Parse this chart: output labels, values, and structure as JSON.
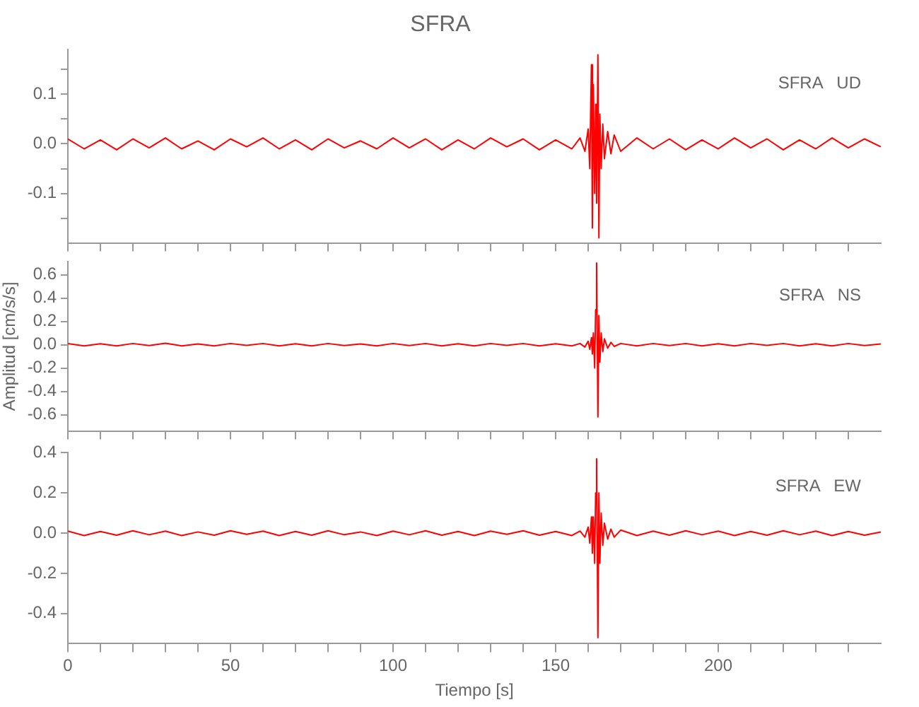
{
  "chart_data": [
    {
      "type": "line",
      "title": "SFRA",
      "annotations": [
        "SFRA   UD"
      ],
      "tick_labels": "y",
      "marker": "none",
      "x": [
        0,
        5,
        10,
        15,
        20,
        25,
        30,
        35,
        40,
        45,
        50,
        55,
        60,
        65,
        70,
        75,
        80,
        85,
        90,
        95,
        100,
        105,
        110,
        115,
        120,
        125,
        130,
        135,
        140,
        145,
        150,
        155,
        157.5,
        159,
        160,
        160.5,
        161,
        161.3,
        161.6,
        162,
        162.3,
        162.6,
        163,
        163.3,
        163.6,
        164,
        164.5,
        165,
        166,
        167,
        168,
        170,
        175,
        180,
        185,
        190,
        195,
        200,
        205,
        210,
        215,
        220,
        225,
        230,
        235,
        240,
        245,
        250
      ],
      "series": [
        {
          "color": "#ff0000",
          "values": [
            0.01,
            -0.01,
            0.008,
            -0.012,
            0.01,
            -0.008,
            0.012,
            -0.01,
            0.006,
            -0.012,
            0.01,
            -0.006,
            0.012,
            -0.01,
            0.008,
            -0.012,
            0.01,
            -0.008,
            0.006,
            -0.01,
            0.012,
            -0.008,
            0.01,
            -0.012,
            0.008,
            -0.01,
            0.012,
            -0.006,
            0.01,
            -0.012,
            0.008,
            -0.01,
            0.012,
            -0.015,
            0.03,
            -0.05,
            0.16,
            -0.17,
            0.12,
            -0.1,
            0.08,
            -0.12,
            0.18,
            -0.19,
            0.06,
            -0.05,
            0.04,
            -0.03,
            0.025,
            -0.02,
            0.018,
            -0.015,
            0.012,
            -0.01,
            0.01,
            -0.012,
            0.008,
            -0.01,
            0.012,
            -0.008,
            0.01,
            -0.012,
            0.008,
            -0.01,
            0.012,
            -0.008,
            0.01,
            -0.006
          ]
        }
      ],
      "xlim": [
        0,
        250
      ],
      "xticks": [
        0,
        {
          "value": 10,
          "label": null
        },
        {
          "value": 20,
          "label": null
        },
        {
          "value": 30,
          "label": null
        },
        {
          "value": 40,
          "label": null
        },
        50,
        {
          "value": 60,
          "label": null
        },
        {
          "value": 70,
          "label": null
        },
        {
          "value": 80,
          "label": null
        },
        {
          "value": 90,
          "label": null
        },
        100,
        {
          "value": 110,
          "label": null
        },
        {
          "value": 120,
          "label": null
        },
        {
          "value": 130,
          "label": null
        },
        {
          "value": 140,
          "label": null
        },
        150,
        {
          "value": 160,
          "label": null
        },
        {
          "value": 170,
          "label": null
        },
        {
          "value": 180,
          "label": null
        },
        {
          "value": 190,
          "label": null
        },
        200,
        {
          "value": 210,
          "label": null
        },
        {
          "value": 220,
          "label": null
        },
        {
          "value": 230,
          "label": null
        },
        {
          "value": 240,
          "label": null
        }
      ],
      "ylim": [
        -0.2,
        0.19
      ],
      "yticks": [
        {
          "value": -0.15,
          "label": null
        },
        {
          "value": -0.1,
          "label": "-0.1"
        },
        {
          "value": -0.05,
          "label": null
        },
        {
          "value": 0,
          "label": "0.0"
        },
        {
          "value": 0.05,
          "label": null
        },
        {
          "value": 0.1,
          "label": "0.1"
        },
        {
          "value": 0.15,
          "label": null
        }
      ]
    },
    {
      "type": "line",
      "ylabel": "Amplitud [cm/s/s]",
      "annotations": [
        "SFRA   NS"
      ],
      "tick_labels": "y",
      "marker": "none",
      "x": [
        0,
        5,
        10,
        15,
        20,
        25,
        30,
        35,
        40,
        45,
        50,
        55,
        60,
        65,
        70,
        75,
        80,
        85,
        90,
        95,
        100,
        105,
        110,
        115,
        120,
        125,
        130,
        135,
        140,
        145,
        150,
        155,
        157.5,
        159,
        160,
        160.5,
        161,
        161.3,
        161.6,
        162,
        162.3,
        162.6,
        163,
        163.3,
        163.6,
        164,
        164.5,
        165,
        166,
        167,
        168,
        170,
        175,
        180,
        185,
        190,
        195,
        200,
        205,
        210,
        215,
        220,
        225,
        230,
        235,
        240,
        245,
        250
      ],
      "series": [
        {
          "color": "#ff0000",
          "values": [
            0.01,
            -0.01,
            0.008,
            -0.01,
            0.01,
            -0.008,
            0.012,
            -0.01,
            0.006,
            -0.01,
            0.01,
            -0.006,
            0.01,
            -0.01,
            0.008,
            -0.01,
            0.01,
            -0.008,
            0.006,
            -0.01,
            0.01,
            -0.008,
            0.01,
            -0.01,
            0.008,
            -0.01,
            0.01,
            -0.006,
            0.01,
            -0.01,
            0.008,
            -0.01,
            0.01,
            -0.02,
            0.03,
            -0.04,
            0.06,
            -0.08,
            0.1,
            -0.2,
            0.3,
            0.7,
            -0.62,
            0.25,
            -0.15,
            0.1,
            -0.06,
            0.05,
            -0.03,
            0.02,
            -0.015,
            0.01,
            -0.01,
            0.01,
            -0.008,
            0.01,
            -0.01,
            0.008,
            -0.01,
            0.01,
            -0.006,
            0.01,
            -0.01,
            0.008,
            -0.01,
            0.01,
            -0.008,
            0.006
          ]
        }
      ],
      "xlim": [
        0,
        250
      ],
      "xticks": [
        0,
        {
          "value": 10,
          "label": null
        },
        {
          "value": 20,
          "label": null
        },
        {
          "value": 30,
          "label": null
        },
        {
          "value": 40,
          "label": null
        },
        50,
        {
          "value": 60,
          "label": null
        },
        {
          "value": 70,
          "label": null
        },
        {
          "value": 80,
          "label": null
        },
        {
          "value": 90,
          "label": null
        },
        100,
        {
          "value": 110,
          "label": null
        },
        {
          "value": 120,
          "label": null
        },
        {
          "value": 130,
          "label": null
        },
        {
          "value": 140,
          "label": null
        },
        150,
        {
          "value": 160,
          "label": null
        },
        {
          "value": 170,
          "label": null
        },
        {
          "value": 180,
          "label": null
        },
        {
          "value": 190,
          "label": null
        },
        200,
        {
          "value": 210,
          "label": null
        },
        {
          "value": 220,
          "label": null
        },
        {
          "value": 230,
          "label": null
        },
        {
          "value": 240,
          "label": null
        }
      ],
      "ylim": [
        -0.74,
        0.71
      ],
      "yticks": [
        {
          "value": -0.6,
          "label": "-0.6"
        },
        {
          "value": -0.4,
          "label": "-0.4"
        },
        {
          "value": -0.2,
          "label": "-0.2"
        },
        {
          "value": 0,
          "label": "0.0"
        },
        {
          "value": 0.2,
          "label": "0.2"
        },
        {
          "value": 0.4,
          "label": "0.4"
        },
        {
          "value": 0.6,
          "label": "0.6"
        }
      ]
    },
    {
      "type": "line",
      "xlabel": "Tiempo [s]",
      "annotations": [
        "SFRA   EW"
      ],
      "marker": "none",
      "x": [
        0,
        5,
        10,
        15,
        20,
        25,
        30,
        35,
        40,
        45,
        50,
        55,
        60,
        65,
        70,
        75,
        80,
        85,
        90,
        95,
        100,
        105,
        110,
        115,
        120,
        125,
        130,
        135,
        140,
        145,
        150,
        155,
        157.5,
        159,
        160,
        160.5,
        161,
        161.3,
        161.6,
        162,
        162.3,
        162.6,
        163,
        163.3,
        163.6,
        164,
        164.5,
        165,
        166,
        167,
        168,
        170,
        175,
        180,
        185,
        190,
        195,
        200,
        205,
        210,
        215,
        220,
        225,
        230,
        235,
        240,
        245,
        250
      ],
      "series": [
        {
          "color": "#ff0000",
          "values": [
            0.01,
            -0.012,
            0.008,
            -0.01,
            0.012,
            -0.008,
            0.01,
            -0.012,
            0.006,
            -0.01,
            0.012,
            -0.006,
            0.01,
            -0.012,
            0.008,
            -0.01,
            0.012,
            -0.008,
            0.006,
            -0.012,
            0.01,
            -0.008,
            0.012,
            -0.01,
            0.008,
            -0.012,
            0.01,
            -0.006,
            0.012,
            -0.01,
            0.008,
            -0.012,
            0.01,
            -0.02,
            0.03,
            -0.05,
            0.08,
            -0.1,
            0.08,
            -0.15,
            0.2,
            0.37,
            -0.52,
            0.2,
            -0.15,
            0.1,
            -0.06,
            0.05,
            -0.03,
            0.02,
            -0.02,
            0.015,
            -0.012,
            0.01,
            -0.01,
            0.012,
            -0.008,
            0.01,
            -0.012,
            0.008,
            -0.01,
            0.012,
            -0.008,
            0.01,
            -0.012,
            0.008,
            -0.01,
            0.006
          ]
        }
      ],
      "xlim": [
        0,
        250
      ],
      "xticks": [
        0,
        {
          "value": 10,
          "label": null
        },
        {
          "value": 20,
          "label": null
        },
        {
          "value": 30,
          "label": null
        },
        {
          "value": 40,
          "label": null
        },
        50,
        {
          "value": 60,
          "label": null
        },
        {
          "value": 70,
          "label": null
        },
        {
          "value": 80,
          "label": null
        },
        {
          "value": 90,
          "label": null
        },
        100,
        {
          "value": 110,
          "label": null
        },
        {
          "value": 120,
          "label": null
        },
        {
          "value": 130,
          "label": null
        },
        {
          "value": 140,
          "label": null
        },
        150,
        {
          "value": 160,
          "label": null
        },
        {
          "value": 170,
          "label": null
        },
        {
          "value": 180,
          "label": null
        },
        {
          "value": 190,
          "label": null
        },
        200,
        {
          "value": 210,
          "label": null
        },
        {
          "value": 220,
          "label": null
        },
        {
          "value": 230,
          "label": null
        },
        {
          "value": 240,
          "label": null
        }
      ],
      "ylim": [
        -0.55,
        0.4
      ],
      "yticks": [
        {
          "value": -0.4,
          "label": "-0.4"
        },
        {
          "value": -0.2,
          "label": "-0.2"
        },
        {
          "value": 0,
          "label": "0.0"
        },
        {
          "value": 0.2,
          "label": "0.2"
        },
        {
          "value": 0.4,
          "label": "0.4"
        }
      ]
    }
  ]
}
